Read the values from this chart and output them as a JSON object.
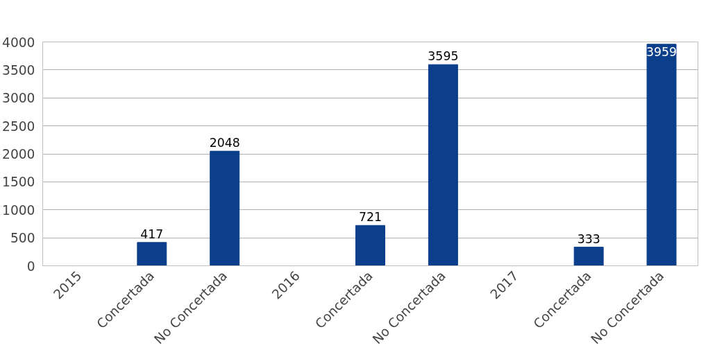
{
  "chart_data": {
    "type": "bar",
    "categories": [
      "2015",
      "Concertada",
      "No Concertada",
      "2016",
      "Concertada",
      "No Concertada",
      "2017",
      "Concertada",
      "No Concertada"
    ],
    "values": [
      null,
      417,
      2048,
      null,
      721,
      3595,
      null,
      333,
      3959
    ],
    "color": "#0b3f8c",
    "ylim": [
      0,
      4000
    ],
    "yticks": [
      0,
      500,
      1000,
      1500,
      2000,
      2500,
      3000,
      3500,
      4000
    ],
    "grid": "y",
    "data_labels": true
  }
}
